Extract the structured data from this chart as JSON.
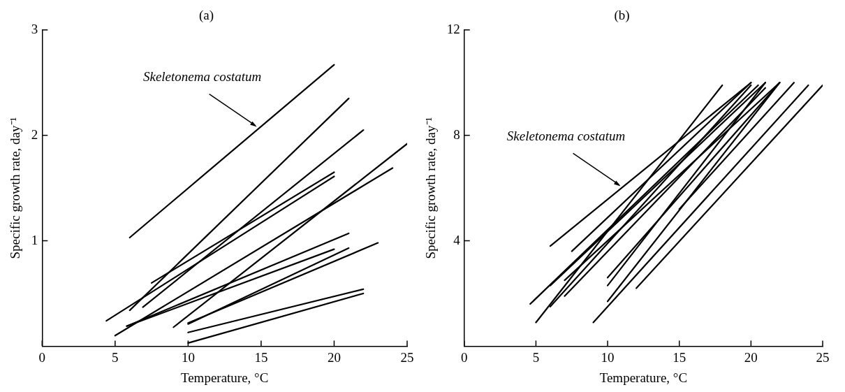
{
  "chart_data": [
    {
      "type": "line",
      "title": "(a)",
      "xlabel": "Temperature, °C",
      "ylabel": "Specific growth rate, day⁻¹",
      "xlim": [
        0,
        25
      ],
      "ylim": [
        0,
        3
      ],
      "xticks": [
        0,
        5,
        10,
        15,
        20,
        25
      ],
      "yticks": [
        1,
        2,
        3
      ],
      "annotations": [
        {
          "text": "Skeletonema costatum",
          "x": 14.7,
          "y": 2.08
        }
      ],
      "series": [
        {
          "color": "#000000",
          "x": [
            6,
            20
          ],
          "values": [
            1.03,
            2.67
          ]
        },
        {
          "color": "#000000",
          "x": [
            6,
            21
          ],
          "values": [
            0.34,
            2.35
          ]
        },
        {
          "color": "#000000",
          "x": [
            6.9,
            22
          ],
          "values": [
            0.37,
            2.05
          ]
        },
        {
          "color": "#000000",
          "x": [
            7.5,
            20
          ],
          "values": [
            0.6,
            1.65
          ]
        },
        {
          "color": "#000000",
          "x": [
            4.4,
            20
          ],
          "values": [
            0.24,
            1.61
          ]
        },
        {
          "color": "#000000",
          "x": [
            9,
            25
          ],
          "values": [
            0.18,
            1.92
          ]
        },
        {
          "color": "#000000",
          "x": [
            5,
            24
          ],
          "values": [
            0.1,
            1.69
          ]
        },
        {
          "color": "#000000",
          "x": [
            5.8,
            21
          ],
          "values": [
            0.19,
            1.07
          ]
        },
        {
          "color": "#000000",
          "x": [
            5.8,
            20
          ],
          "values": [
            0.19,
            0.92
          ]
        },
        {
          "color": "#000000",
          "x": [
            10,
            21
          ],
          "values": [
            0.21,
            0.93
          ]
        },
        {
          "color": "#000000",
          "x": [
            10,
            23
          ],
          "values": [
            0.22,
            0.98
          ]
        },
        {
          "color": "#000000",
          "x": [
            10,
            22
          ],
          "values": [
            0.13,
            0.54
          ]
        },
        {
          "color": "#000000",
          "x": [
            10,
            22
          ],
          "values": [
            0.03,
            0.5
          ]
        }
      ]
    },
    {
      "type": "line",
      "title": "(b)",
      "xlabel": "Temperature, °C",
      "ylabel": "Specific growth rate, day⁻¹",
      "xlim": [
        0,
        25
      ],
      "ylim": [
        0,
        12
      ],
      "xticks": [
        0,
        5,
        10,
        15,
        20,
        25
      ],
      "yticks": [
        4,
        8,
        12
      ],
      "annotations": [
        {
          "text": "Skeletonema costatum",
          "x": 10.9,
          "y": 6.07
        }
      ],
      "series": [
        {
          "color": "#000000",
          "x": [
            6,
            20
          ],
          "values": [
            3.8,
            10
          ]
        },
        {
          "color": "#000000",
          "x": [
            7.5,
            20
          ],
          "values": [
            3.6,
            10
          ]
        },
        {
          "color": "#000000",
          "x": [
            4.6,
            20.5
          ],
          "values": [
            1.6,
            9.9
          ]
        },
        {
          "color": "#000000",
          "x": [
            5,
            18
          ],
          "values": [
            0.9,
            9.9
          ]
        },
        {
          "color": "#000000",
          "x": [
            6,
            21
          ],
          "values": [
            2.3,
            10
          ]
        },
        {
          "color": "#000000",
          "x": [
            6,
            20
          ],
          "values": [
            1.5,
            9.9
          ]
        },
        {
          "color": "#000000",
          "x": [
            7,
            22
          ],
          "values": [
            2.5,
            10
          ]
        },
        {
          "color": "#000000",
          "x": [
            7,
            21
          ],
          "values": [
            1.9,
            9.8
          ]
        },
        {
          "color": "#000000",
          "x": [
            10,
            22
          ],
          "values": [
            2.6,
            10
          ]
        },
        {
          "color": "#000000",
          "x": [
            10,
            21
          ],
          "values": [
            2.3,
            10
          ]
        },
        {
          "color": "#000000",
          "x": [
            10,
            22
          ],
          "values": [
            1.7,
            10
          ]
        },
        {
          "color": "#000000",
          "x": [
            9,
            24
          ],
          "values": [
            0.9,
            9.9
          ]
        },
        {
          "color": "#000000",
          "x": [
            12,
            25
          ],
          "values": [
            2.2,
            9.9
          ]
        },
        {
          "color": "#000000",
          "x": [
            15,
            23
          ],
          "values": [
            5.2,
            10
          ]
        }
      ]
    }
  ]
}
